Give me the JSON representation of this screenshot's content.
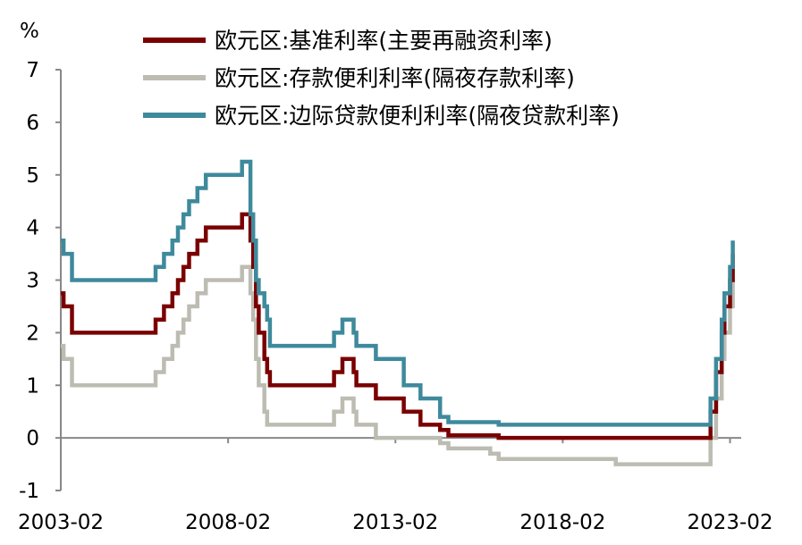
{
  "chart_data": {
    "type": "line",
    "title": "",
    "ylabel": "%",
    "xlabel": "",
    "ylim": [
      -1,
      7
    ],
    "yticks": [
      "-1",
      "0",
      "1",
      "2",
      "3",
      "4",
      "5",
      "6",
      "7"
    ],
    "xlim": [
      "2003-02",
      "2023-06"
    ],
    "xticks": [
      "2003-02",
      "2008-02",
      "2013-02",
      "2018-02",
      "2023-02"
    ],
    "grid": false,
    "legend_position": "top",
    "series": [
      {
        "name": "欧元区:基准利率(主要再融资利率)",
        "color": "#7a0000",
        "points": [
          [
            "2003-02",
            2.75
          ],
          [
            "2003-03",
            2.5
          ],
          [
            "2003-06",
            2.0
          ],
          [
            "2005-12",
            2.25
          ],
          [
            "2006-03",
            2.5
          ],
          [
            "2006-06",
            2.75
          ],
          [
            "2006-08",
            3.0
          ],
          [
            "2006-10",
            3.25
          ],
          [
            "2006-12",
            3.5
          ],
          [
            "2007-03",
            3.75
          ],
          [
            "2007-06",
            4.0
          ],
          [
            "2008-07",
            4.25
          ],
          [
            "2008-10",
            3.75
          ],
          [
            "2008-11",
            3.25
          ],
          [
            "2008-12",
            2.5
          ],
          [
            "2009-01",
            2.0
          ],
          [
            "2009-03",
            1.5
          ],
          [
            "2009-04",
            1.25
          ],
          [
            "2009-05",
            1.0
          ],
          [
            "2011-04",
            1.25
          ],
          [
            "2011-07",
            1.5
          ],
          [
            "2011-11",
            1.25
          ],
          [
            "2011-12",
            1.0
          ],
          [
            "2012-07",
            0.75
          ],
          [
            "2013-05",
            0.5
          ],
          [
            "2013-11",
            0.25
          ],
          [
            "2014-06",
            0.15
          ],
          [
            "2014-09",
            0.05
          ],
          [
            "2016-03",
            0.0
          ],
          [
            "2022-07",
            0.5
          ],
          [
            "2022-09",
            1.25
          ],
          [
            "2022-11",
            2.0
          ],
          [
            "2022-12",
            2.5
          ],
          [
            "2023-02",
            3.0
          ],
          [
            "2023-03",
            3.5
          ]
        ]
      },
      {
        "name": "欧元区:存款便利利率(隔夜存款利率)",
        "color": "#bdbcb2",
        "points": [
          [
            "2003-02",
            1.75
          ],
          [
            "2003-03",
            1.5
          ],
          [
            "2003-06",
            1.0
          ],
          [
            "2005-12",
            1.25
          ],
          [
            "2006-03",
            1.5
          ],
          [
            "2006-06",
            1.75
          ],
          [
            "2006-08",
            2.0
          ],
          [
            "2006-10",
            2.25
          ],
          [
            "2006-12",
            2.5
          ],
          [
            "2007-03",
            2.75
          ],
          [
            "2007-06",
            3.0
          ],
          [
            "2008-07",
            3.25
          ],
          [
            "2008-10",
            2.75
          ],
          [
            "2008-11",
            2.25
          ],
          [
            "2008-12",
            1.5
          ],
          [
            "2009-01",
            1.0
          ],
          [
            "2009-03",
            0.5
          ],
          [
            "2009-04",
            0.25
          ],
          [
            "2011-04",
            0.5
          ],
          [
            "2011-07",
            0.75
          ],
          [
            "2011-11",
            0.5
          ],
          [
            "2011-12",
            0.25
          ],
          [
            "2012-07",
            0.0
          ],
          [
            "2014-06",
            -0.1
          ],
          [
            "2014-09",
            -0.2
          ],
          [
            "2015-12",
            -0.3
          ],
          [
            "2016-03",
            -0.4
          ],
          [
            "2019-09",
            -0.5
          ],
          [
            "2022-07",
            0.0
          ],
          [
            "2022-09",
            0.75
          ],
          [
            "2022-11",
            1.5
          ],
          [
            "2022-12",
            2.0
          ],
          [
            "2023-02",
            2.5
          ],
          [
            "2023-03",
            3.0
          ]
        ]
      },
      {
        "name": "欧元区:边际贷款便利利率(隔夜贷款利率)",
        "color": "#3e8a9c",
        "points": [
          [
            "2003-02",
            3.75
          ],
          [
            "2003-03",
            3.5
          ],
          [
            "2003-06",
            3.0
          ],
          [
            "2005-12",
            3.25
          ],
          [
            "2006-03",
            3.5
          ],
          [
            "2006-06",
            3.75
          ],
          [
            "2006-08",
            4.0
          ],
          [
            "2006-10",
            4.25
          ],
          [
            "2006-12",
            4.5
          ],
          [
            "2007-03",
            4.75
          ],
          [
            "2007-06",
            5.0
          ],
          [
            "2008-07",
            5.25
          ],
          [
            "2008-10",
            4.25
          ],
          [
            "2008-11",
            3.75
          ],
          [
            "2008-12",
            3.0
          ],
          [
            "2009-01",
            2.75
          ],
          [
            "2009-03",
            2.5
          ],
          [
            "2009-04",
            2.25
          ],
          [
            "2009-05",
            1.75
          ],
          [
            "2011-04",
            2.0
          ],
          [
            "2011-07",
            2.25
          ],
          [
            "2011-11",
            2.0
          ],
          [
            "2011-12",
            1.75
          ],
          [
            "2012-07",
            1.5
          ],
          [
            "2013-05",
            1.0
          ],
          [
            "2013-11",
            0.75
          ],
          [
            "2014-06",
            0.4
          ],
          [
            "2014-09",
            0.3
          ],
          [
            "2016-03",
            0.25
          ],
          [
            "2022-07",
            0.75
          ],
          [
            "2022-09",
            1.5
          ],
          [
            "2022-11",
            2.25
          ],
          [
            "2022-12",
            2.75
          ],
          [
            "2023-02",
            3.25
          ],
          [
            "2023-03",
            3.75
          ]
        ]
      }
    ]
  }
}
